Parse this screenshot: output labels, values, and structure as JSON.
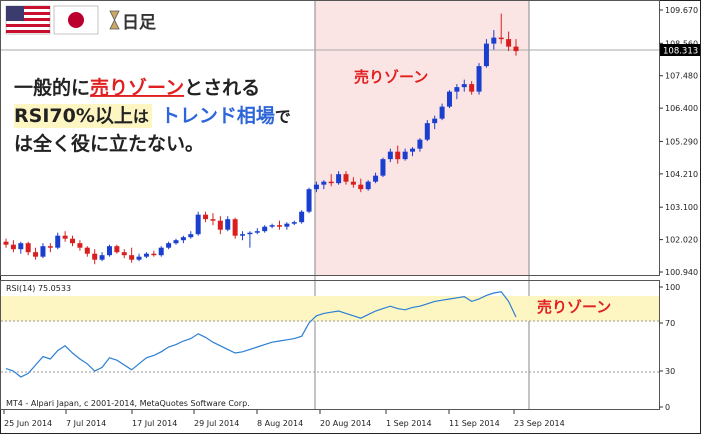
{
  "header": {
    "timeframe_label": "日足",
    "headline_line1_a": "一般的に",
    "headline_line1_b": "売りゾーン",
    "headline_line1_c": "とされる",
    "headline_line2_a": "RSI70%以上",
    "headline_line2_b": "は",
    "headline_line2_c": "トレンド相場",
    "headline_line2_d": "で",
    "headline_line3": "は全く役に立たない。"
  },
  "chart_data": [
    {
      "type": "candlestick",
      "zone_label": "売りゾーン",
      "zone_range": [
        "20 Aug 2014",
        "23 Sep 2014"
      ],
      "ylim": [
        10.6,
        109.8
      ],
      "ytick_labels": [
        "109.670",
        "108.560",
        "107.480",
        "106.400",
        "105.290",
        "104.210",
        "103.100",
        "102.020",
        "100.940"
      ],
      "current_price": "108.313",
      "xtick_labels": [
        "25 Jun 2014",
        "7 Jul 2014",
        "17 Jul 2014",
        "29 Jul 2014",
        "8 Aug 2014",
        "20 Aug 2014",
        "1 Sep 2014",
        "11 Sep 2014",
        "23 Sep 2014"
      ],
      "candles": [
        {
          "o": 101.95,
          "h": 102.05,
          "l": 101.75,
          "c": 101.85
        },
        {
          "o": 101.85,
          "h": 102.0,
          "l": 101.6,
          "c": 101.7
        },
        {
          "o": 101.7,
          "h": 101.95,
          "l": 101.55,
          "c": 101.9
        },
        {
          "o": 101.9,
          "h": 101.95,
          "l": 101.5,
          "c": 101.6
        },
        {
          "o": 101.6,
          "h": 101.75,
          "l": 101.35,
          "c": 101.45
        },
        {
          "o": 101.45,
          "h": 101.9,
          "l": 101.4,
          "c": 101.8
        },
        {
          "o": 101.8,
          "h": 101.9,
          "l": 101.6,
          "c": 101.75
        },
        {
          "o": 101.75,
          "h": 102.25,
          "l": 101.7,
          "c": 102.15
        },
        {
          "o": 102.15,
          "h": 102.3,
          "l": 101.95,
          "c": 102.05
        },
        {
          "o": 102.05,
          "h": 102.15,
          "l": 101.8,
          "c": 101.9
        },
        {
          "o": 101.9,
          "h": 102.0,
          "l": 101.65,
          "c": 101.75
        },
        {
          "o": 101.75,
          "h": 101.8,
          "l": 101.45,
          "c": 101.55
        },
        {
          "o": 101.55,
          "h": 101.7,
          "l": 101.2,
          "c": 101.35
        },
        {
          "o": 101.35,
          "h": 101.6,
          "l": 101.3,
          "c": 101.5
        },
        {
          "o": 101.5,
          "h": 101.85,
          "l": 101.45,
          "c": 101.8
        },
        {
          "o": 101.8,
          "h": 101.85,
          "l": 101.55,
          "c": 101.6
        },
        {
          "o": 101.6,
          "h": 101.7,
          "l": 101.4,
          "c": 101.5
        },
        {
          "o": 101.5,
          "h": 101.75,
          "l": 101.25,
          "c": 101.35
        },
        {
          "o": 101.35,
          "h": 101.55,
          "l": 101.3,
          "c": 101.45
        },
        {
          "o": 101.45,
          "h": 101.6,
          "l": 101.4,
          "c": 101.55
        },
        {
          "o": 101.55,
          "h": 101.65,
          "l": 101.45,
          "c": 101.5
        },
        {
          "o": 101.5,
          "h": 101.8,
          "l": 101.45,
          "c": 101.75
        },
        {
          "o": 101.75,
          "h": 101.95,
          "l": 101.7,
          "c": 101.9
        },
        {
          "o": 101.9,
          "h": 102.05,
          "l": 101.85,
          "c": 102.0
        },
        {
          "o": 102.0,
          "h": 102.15,
          "l": 101.9,
          "c": 102.1
        },
        {
          "o": 102.1,
          "h": 102.3,
          "l": 102.05,
          "c": 102.2
        },
        {
          "o": 102.2,
          "h": 102.95,
          "l": 102.15,
          "c": 102.85
        },
        {
          "o": 102.85,
          "h": 102.95,
          "l": 102.6,
          "c": 102.7
        },
        {
          "o": 102.7,
          "h": 102.9,
          "l": 102.5,
          "c": 102.65
        },
        {
          "o": 102.65,
          "h": 102.8,
          "l": 102.2,
          "c": 102.35
        },
        {
          "o": 102.35,
          "h": 102.8,
          "l": 102.3,
          "c": 102.7
        },
        {
          "o": 102.7,
          "h": 102.75,
          "l": 102.05,
          "c": 102.15
        },
        {
          "o": 102.15,
          "h": 102.3,
          "l": 102.0,
          "c": 102.2
        },
        {
          "o": 102.2,
          "h": 102.3,
          "l": 101.75,
          "c": 102.25
        },
        {
          "o": 102.25,
          "h": 102.4,
          "l": 102.2,
          "c": 102.3
        },
        {
          "o": 102.3,
          "h": 102.5,
          "l": 102.25,
          "c": 102.45
        },
        {
          "o": 102.45,
          "h": 102.55,
          "l": 102.4,
          "c": 102.5
        },
        {
          "o": 102.5,
          "h": 102.65,
          "l": 102.35,
          "c": 102.45
        },
        {
          "o": 102.45,
          "h": 102.6,
          "l": 102.35,
          "c": 102.55
        },
        {
          "o": 102.55,
          "h": 102.65,
          "l": 102.5,
          "c": 102.6
        },
        {
          "o": 102.6,
          "h": 103.0,
          "l": 102.55,
          "c": 102.95
        },
        {
          "o": 102.95,
          "h": 103.75,
          "l": 102.9,
          "c": 103.7
        },
        {
          "o": 103.7,
          "h": 103.95,
          "l": 103.6,
          "c": 103.85
        },
        {
          "o": 103.85,
          "h": 104.0,
          "l": 103.7,
          "c": 103.95
        },
        {
          "o": 103.95,
          "h": 104.2,
          "l": 103.8,
          "c": 103.9
        },
        {
          "o": 103.9,
          "h": 104.3,
          "l": 103.85,
          "c": 104.2
        },
        {
          "o": 104.2,
          "h": 104.3,
          "l": 103.85,
          "c": 103.95
        },
        {
          "o": 103.95,
          "h": 104.1,
          "l": 103.75,
          "c": 103.85
        },
        {
          "o": 103.85,
          "h": 104.05,
          "l": 103.6,
          "c": 103.7
        },
        {
          "o": 103.7,
          "h": 104.0,
          "l": 103.65,
          "c": 103.95
        },
        {
          "o": 103.95,
          "h": 104.25,
          "l": 103.9,
          "c": 104.15
        },
        {
          "o": 104.15,
          "h": 104.75,
          "l": 104.1,
          "c": 104.7
        },
        {
          "o": 104.7,
          "h": 105.05,
          "l": 104.6,
          "c": 104.95
        },
        {
          "o": 104.95,
          "h": 105.15,
          "l": 104.55,
          "c": 104.7
        },
        {
          "o": 104.7,
          "h": 105.05,
          "l": 104.65,
          "c": 104.95
        },
        {
          "o": 104.95,
          "h": 105.1,
          "l": 104.8,
          "c": 105.05
        },
        {
          "o": 105.05,
          "h": 105.4,
          "l": 104.95,
          "c": 105.35
        },
        {
          "o": 105.35,
          "h": 106.0,
          "l": 105.3,
          "c": 105.9
        },
        {
          "o": 105.9,
          "h": 106.15,
          "l": 105.7,
          "c": 106.05
        },
        {
          "o": 106.05,
          "h": 106.55,
          "l": 106.0,
          "c": 106.45
        },
        {
          "o": 106.45,
          "h": 107.0,
          "l": 106.4,
          "c": 106.95
        },
        {
          "o": 106.95,
          "h": 107.2,
          "l": 106.7,
          "c": 107.1
        },
        {
          "o": 107.1,
          "h": 107.35,
          "l": 106.95,
          "c": 107.2
        },
        {
          "o": 107.2,
          "h": 107.3,
          "l": 106.85,
          "c": 106.95
        },
        {
          "o": 106.95,
          "h": 107.9,
          "l": 106.85,
          "c": 107.8
        },
        {
          "o": 107.8,
          "h": 108.7,
          "l": 107.75,
          "c": 108.55
        },
        {
          "o": 108.55,
          "h": 109.0,
          "l": 108.35,
          "c": 108.75
        },
        {
          "o": 108.75,
          "h": 109.55,
          "l": 108.55,
          "c": 108.7
        },
        {
          "o": 108.7,
          "h": 108.95,
          "l": 108.3,
          "c": 108.45
        },
        {
          "o": 108.45,
          "h": 108.7,
          "l": 108.15,
          "c": 108.3
        }
      ]
    },
    {
      "type": "line",
      "label": "RSI(14) 75.0533",
      "zone_label": "売りゾーン",
      "ylim": [
        0,
        100
      ],
      "band": [
        70,
        100
      ],
      "ytick_labels": [
        "100",
        "70",
        "30",
        "0"
      ],
      "series": [
        {
          "values": [
            32,
            30,
            25,
            28,
            35,
            42,
            40,
            47,
            51,
            45,
            40,
            36,
            30,
            33,
            41,
            39,
            35,
            31,
            36,
            41,
            43,
            46,
            50,
            52,
            55,
            57,
            61,
            58,
            54,
            51,
            48,
            45,
            46,
            48,
            50,
            52,
            54,
            55,
            56,
            57,
            59,
            70,
            76,
            78,
            79,
            80,
            78,
            76,
            74,
            77,
            80,
            82,
            84,
            82,
            81,
            83,
            84,
            86,
            88,
            89,
            90,
            91,
            92,
            88,
            90,
            93,
            95,
            96,
            88,
            75
          ]
        }
      ]
    }
  ],
  "footer": {
    "copyright": "MT4 - Alpari Japan, c 2001-2014, MetaQuotes Software Corp."
  }
}
